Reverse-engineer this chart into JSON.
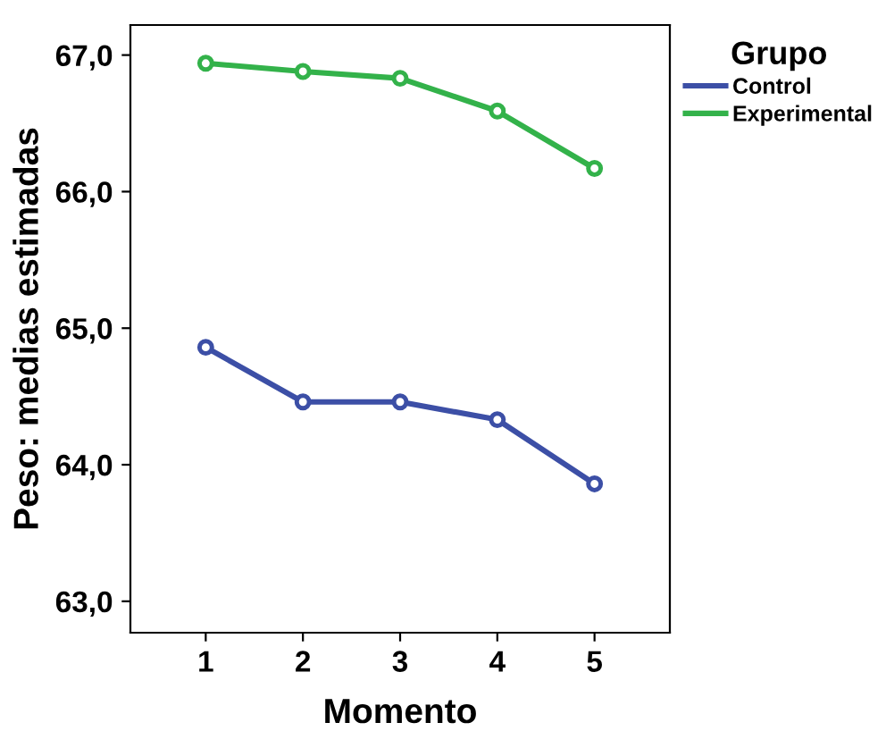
{
  "chart_data": {
    "type": "line",
    "xlabel": "Momento",
    "ylabel": "Peso: medias estimadas",
    "legend_title": "Grupo",
    "categories": [
      "1",
      "2",
      "3",
      "4",
      "5"
    ],
    "series": [
      {
        "name": "Control",
        "color": "#3c4fa6",
        "values": [
          64.86,
          64.46,
          64.46,
          64.33,
          63.86
        ]
      },
      {
        "name": "Experimental",
        "color": "#33b24a",
        "values": [
          66.94,
          66.88,
          66.83,
          66.59,
          66.17
        ]
      }
    ],
    "ylim": [
      62.77,
      67.22
    ],
    "yticks": [
      {
        "value": 63,
        "label": "63,0"
      },
      {
        "value": 64,
        "label": "64,0"
      },
      {
        "value": 65,
        "label": "65,0"
      },
      {
        "value": 66,
        "label": "66,0"
      },
      {
        "value": 67,
        "label": "67,0"
      }
    ],
    "grid": false,
    "legend": "top right",
    "marker": "circle",
    "line_style": "solid"
  }
}
